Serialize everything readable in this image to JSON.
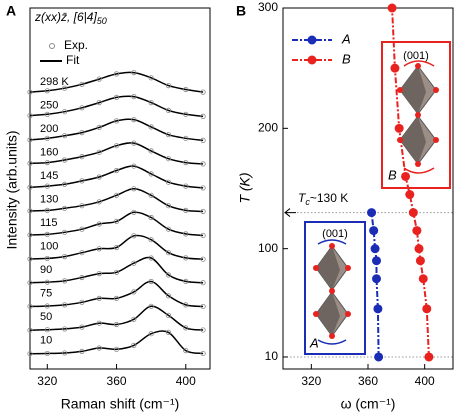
{
  "chart_data": [
    {
      "type": "stacked-line",
      "panel_label": "A",
      "title": "z(xx)z̄, [6|4]",
      "title_subscript": "50",
      "x_label": "Raman shift (cm⁻¹)",
      "y_label": "Intensity (arb.units)",
      "legend": [
        "Exp.",
        "Fit"
      ],
      "marker_color": "#888888",
      "fit_color": "#000000",
      "xlim": [
        310,
        414
      ],
      "xticks": [
        320,
        360,
        400
      ],
      "x": [
        310,
        320,
        330,
        340,
        350,
        360,
        370,
        380,
        390,
        400,
        410
      ],
      "series": [
        {
          "name": "298 K",
          "values": [
            0.15,
            0.2,
            0.3,
            0.45,
            0.65,
            0.85,
            0.9,
            0.7,
            0.4,
            0.25,
            0.15
          ]
        },
        {
          "name": "250",
          "values": [
            0.15,
            0.2,
            0.3,
            0.45,
            0.65,
            0.85,
            0.88,
            0.65,
            0.35,
            0.2,
            0.12
          ]
        },
        {
          "name": "200",
          "values": [
            0.12,
            0.18,
            0.28,
            0.4,
            0.6,
            0.85,
            0.9,
            0.62,
            0.32,
            0.18,
            0.1
          ]
        },
        {
          "name": "160",
          "values": [
            0.12,
            0.15,
            0.25,
            0.38,
            0.55,
            0.8,
            0.9,
            0.6,
            0.3,
            0.15,
            0.1
          ]
        },
        {
          "name": "145",
          "values": [
            0.1,
            0.15,
            0.22,
            0.35,
            0.5,
            0.75,
            0.92,
            0.62,
            0.3,
            0.15,
            0.08
          ]
        },
        {
          "name": "130",
          "values": [
            0.1,
            0.12,
            0.2,
            0.3,
            0.45,
            0.7,
            0.95,
            0.7,
            0.3,
            0.12,
            0.08
          ]
        },
        {
          "name": "115",
          "values": [
            0.08,
            0.1,
            0.18,
            0.3,
            0.5,
            0.6,
            0.95,
            0.75,
            0.3,
            0.12,
            0.06
          ]
        },
        {
          "name": "100",
          "values": [
            0.06,
            0.08,
            0.15,
            0.3,
            0.45,
            0.5,
            0.95,
            0.8,
            0.3,
            0.1,
            0.05
          ]
        },
        {
          "name": "90",
          "values": [
            0.05,
            0.07,
            0.12,
            0.25,
            0.4,
            0.45,
            0.8,
            1.0,
            0.35,
            0.1,
            0.05
          ]
        },
        {
          "name": "75",
          "values": [
            0.04,
            0.06,
            0.1,
            0.2,
            0.35,
            0.35,
            0.6,
            1.0,
            0.45,
            0.1,
            0.04
          ]
        },
        {
          "name": "50",
          "values": [
            0.03,
            0.05,
            0.08,
            0.15,
            0.3,
            0.25,
            0.45,
            0.95,
            0.6,
            0.12,
            0.04
          ]
        },
        {
          "name": "10",
          "values": [
            0.03,
            0.04,
            0.06,
            0.12,
            0.25,
            0.2,
            0.35,
            0.8,
            0.85,
            0.15,
            0.04
          ]
        }
      ]
    },
    {
      "type": "line",
      "panel_label": "B",
      "x_label": "ω (cm⁻¹)",
      "y_label": "T (K)",
      "xlim": [
        300,
        420
      ],
      "xticks": [
        320,
        360,
        400
      ],
      "ylim": [
        0,
        300
      ],
      "yticks": [
        10,
        100,
        200,
        300
      ],
      "reference_lines": [
        130,
        10
      ],
      "annotation_symbol": "T",
      "annotation_subscript": "c",
      "annotation_text": "~130 K",
      "series": [
        {
          "name": "A",
          "color": "#1a2db4",
          "x": [
            367.5,
            367,
            366,
            366,
            365,
            364,
            362.5
          ],
          "values": [
            10,
            50,
            75,
            90,
            100,
            115,
            130
          ]
        },
        {
          "name": "B",
          "color": "#e8231f",
          "x": [
            403,
            401.5,
            399,
            397,
            396,
            394.5,
            392,
            389.5,
            386.5,
            382,
            379,
            377
          ],
          "values": [
            10,
            50,
            75,
            90,
            100,
            115,
            130,
            145,
            160,
            200,
            250,
            300
          ]
        }
      ],
      "insets": [
        {
          "plane": "(001)",
          "label": "A"
        },
        {
          "plane": "(001)",
          "label": "B"
        }
      ]
    }
  ]
}
